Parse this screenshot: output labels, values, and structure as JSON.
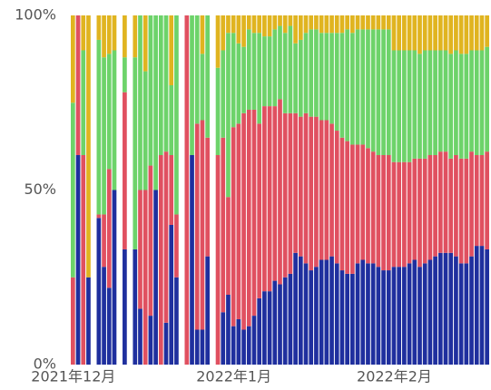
{
  "chart_data": {
    "type": "stacked_bar_100",
    "categories": [
      "2021年12月",
      null,
      null,
      null,
      null,
      null,
      null,
      null,
      null,
      null,
      null,
      null,
      null,
      null,
      null,
      null,
      null,
      null,
      null,
      null,
      null,
      null,
      null,
      null,
      null,
      null,
      null,
      null,
      null,
      null,
      null,
      "2022年1月",
      null,
      null,
      null,
      null,
      null,
      null,
      null,
      null,
      null,
      null,
      null,
      null,
      null,
      null,
      null,
      null,
      null,
      null,
      null,
      null,
      null,
      null,
      null,
      null,
      null,
      null,
      null,
      null,
      null,
      null,
      "2022年2月",
      null,
      null,
      null,
      null,
      null,
      null,
      null,
      null,
      null,
      null,
      null,
      null,
      null,
      null,
      null,
      null,
      null,
      null
    ],
    "series": [
      {
        "color": "#1f2f9e",
        "values": [
          0,
          60,
          0,
          25,
          0,
          42,
          28,
          22,
          50,
          0,
          33,
          0,
          33,
          16,
          0,
          14,
          50,
          0,
          12,
          40,
          25,
          0,
          0,
          60,
          10,
          10,
          31,
          0,
          0,
          15,
          20,
          11,
          13,
          10,
          11,
          14,
          19,
          21,
          21,
          24,
          23,
          25,
          26,
          32,
          31,
          29,
          27,
          28,
          30,
          30,
          31,
          29,
          27,
          26,
          26,
          29,
          30,
          29,
          29,
          28,
          27,
          27,
          28,
          28,
          28,
          29,
          30,
          28,
          29,
          30,
          31,
          32,
          32,
          32,
          31,
          29,
          29,
          31,
          34,
          34,
          33
        ]
      },
      {
        "color": "#e05060",
        "values": [
          25,
          40,
          60,
          0,
          0,
          1,
          15,
          34,
          0,
          0,
          45,
          0,
          0,
          34,
          50,
          43,
          0,
          60,
          49,
          20,
          18,
          0,
          100,
          0,
          59,
          60,
          34,
          0,
          60,
          50,
          28,
          57,
          56,
          62,
          62,
          59,
          50,
          53,
          53,
          50,
          53,
          47,
          46,
          40,
          40,
          43,
          44,
          43,
          40,
          40,
          38,
          38,
          38,
          38,
          37,
          34,
          33,
          33,
          32,
          32,
          33,
          33,
          30,
          30,
          30,
          29,
          29,
          31,
          30,
          30,
          29,
          29,
          29,
          27,
          29,
          30,
          30,
          30,
          26,
          26,
          28
        ]
      },
      {
        "color": "#6dd36a",
        "values": [
          50,
          0,
          30,
          0,
          0,
          50,
          45,
          33,
          40,
          0,
          10,
          0,
          55,
          50,
          34,
          43,
          50,
          40,
          39,
          20,
          57,
          0,
          0,
          40,
          31,
          19,
          35,
          0,
          25,
          25,
          47,
          27,
          23,
          19,
          23,
          22,
          26,
          20,
          20,
          22,
          21,
          23,
          25,
          20,
          22,
          23,
          25,
          25,
          25,
          25,
          26,
          28,
          30,
          32,
          32,
          33,
          33,
          34,
          35,
          36,
          36,
          36,
          32,
          32,
          32,
          32,
          31,
          30,
          31,
          30,
          30,
          29,
          29,
          30,
          30,
          30,
          30,
          29,
          30,
          30,
          30
        ]
      },
      {
        "color": "#e0b420",
        "values": [
          25,
          0,
          10,
          75,
          0,
          7,
          12,
          11,
          10,
          0,
          12,
          0,
          12,
          0,
          16,
          0,
          0,
          0,
          0,
          20,
          0,
          0,
          0,
          0,
          0,
          11,
          0,
          0,
          15,
          10,
          5,
          5,
          8,
          9,
          4,
          5,
          5,
          6,
          6,
          4,
          3,
          5,
          3,
          8,
          7,
          5,
          4,
          4,
          5,
          5,
          5,
          5,
          5,
          4,
          5,
          4,
          4,
          4,
          4,
          4,
          4,
          4,
          10,
          10,
          10,
          10,
          10,
          11,
          10,
          10,
          10,
          10,
          10,
          11,
          10,
          11,
          11,
          10,
          10,
          10,
          9
        ]
      }
    ],
    "ylim": [
      0,
      100
    ],
    "yticks": [
      {
        "value": 0,
        "label": "0%"
      },
      {
        "value": 50,
        "label": "50%"
      },
      {
        "value": 100,
        "label": "100%"
      }
    ]
  }
}
